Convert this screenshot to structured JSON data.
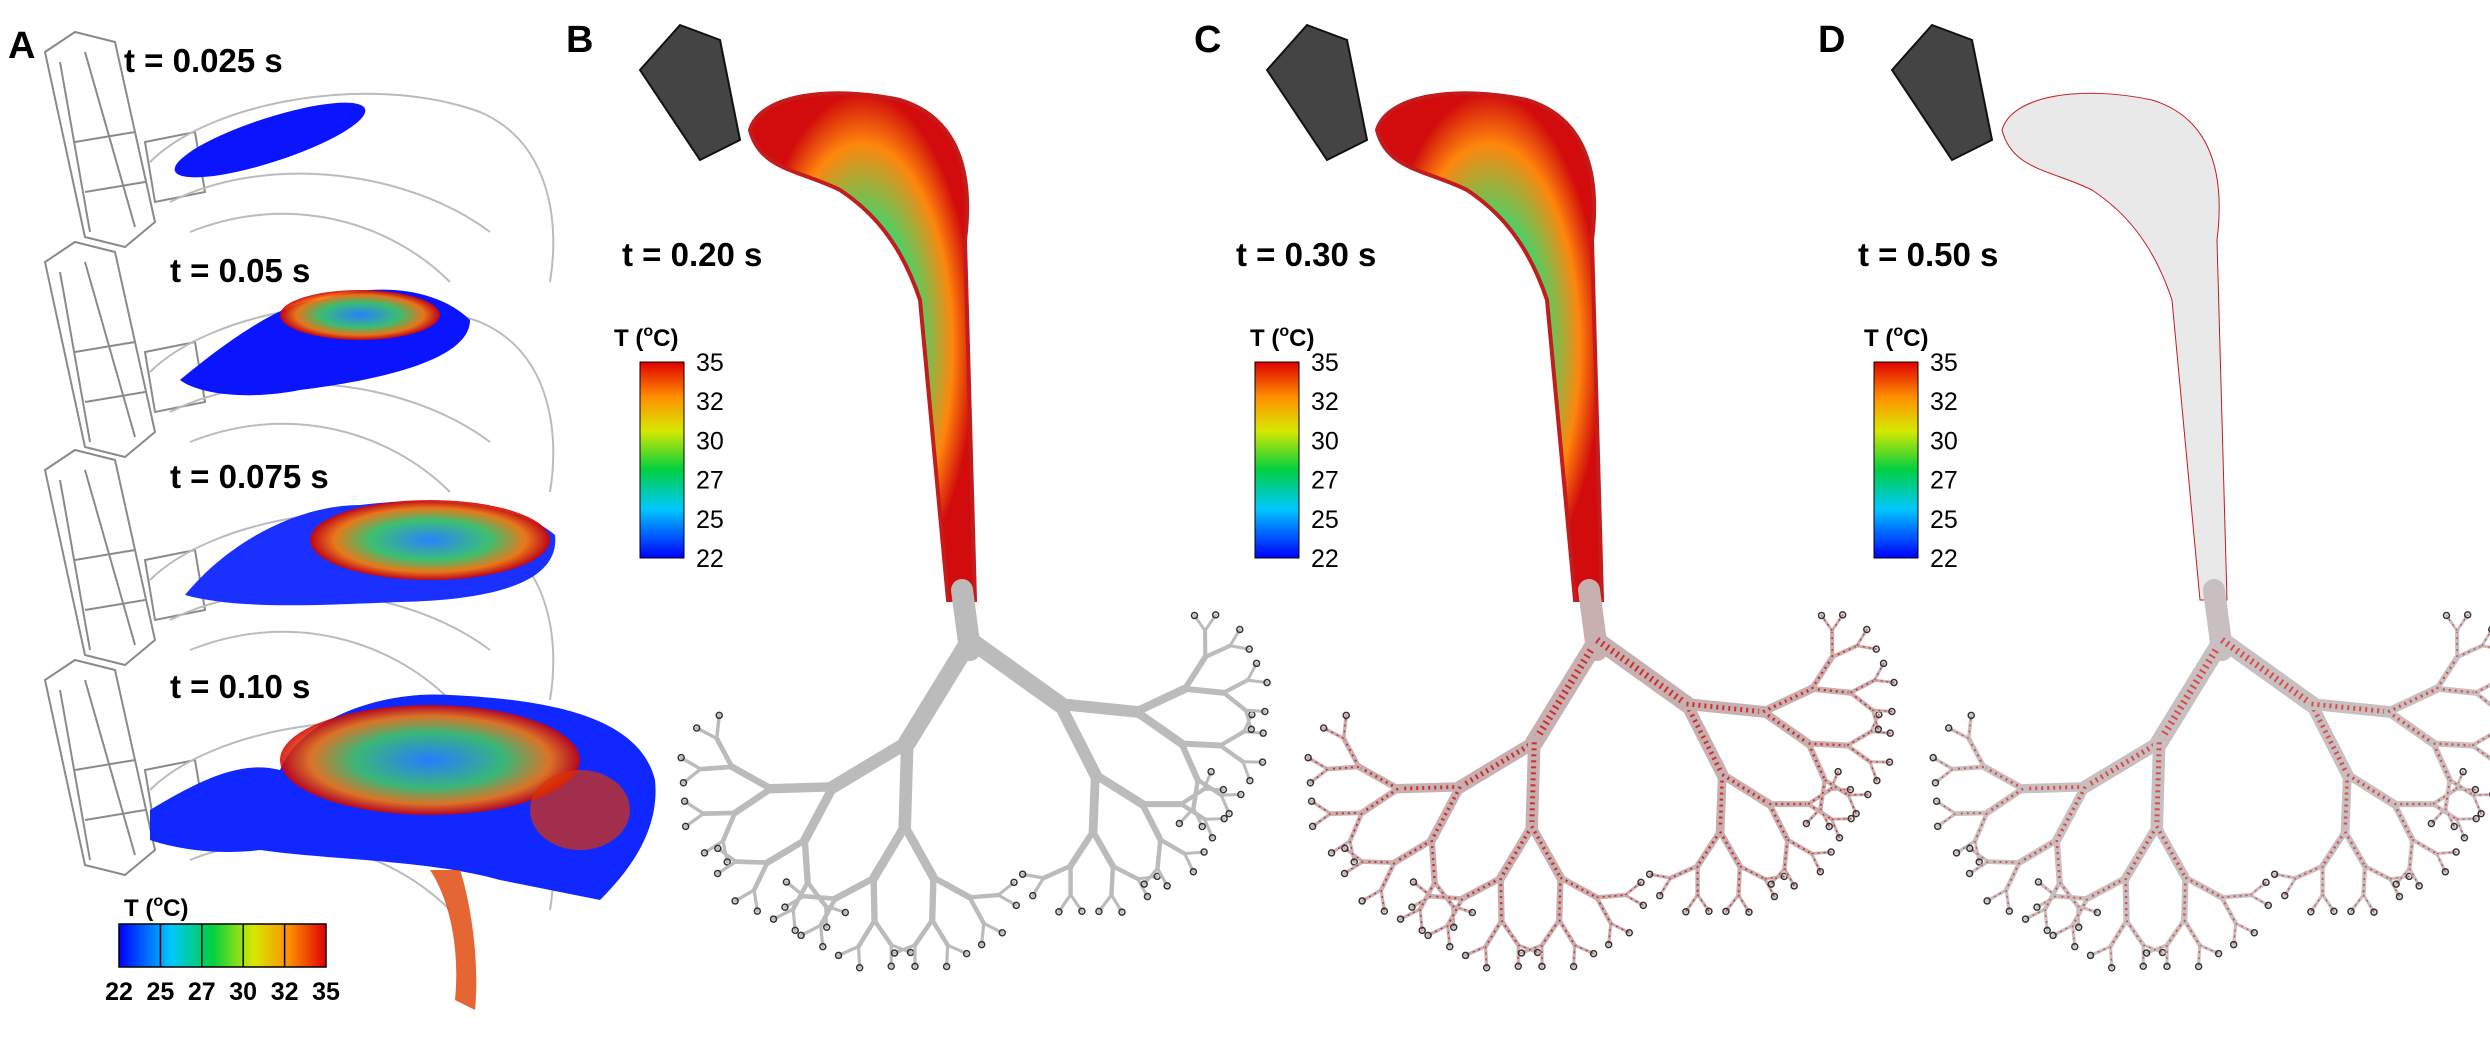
{
  "panels": [
    {
      "label": "A",
      "snapshots": [
        "t = 0.025 s",
        "t = 0.05 s",
        "t = 0.075 s",
        "t = 0.10 s"
      ],
      "colorbar": {
        "title": {
          "prefix": "T (",
          "sup": "o",
          "suffix": "C)"
        },
        "ticks": [
          22,
          25,
          27,
          30,
          32,
          35
        ]
      }
    },
    {
      "label": "B",
      "time": "t = 0.20 s",
      "colorbar": {
        "title": {
          "prefix": "T (",
          "sup": "o",
          "suffix": "C)"
        },
        "ticks": [
          22,
          25,
          27,
          30,
          32,
          35
        ]
      }
    },
    {
      "label": "C",
      "time": "t = 0.30 s",
      "colorbar": {
        "title": {
          "prefix": "T (",
          "sup": "o",
          "suffix": "C)"
        },
        "ticks": [
          22,
          25,
          27,
          30,
          32,
          35
        ]
      }
    },
    {
      "label": "D",
      "time": "t = 0.50 s",
      "colorbar": {
        "title": {
          "prefix": "T (",
          "sup": "o",
          "suffix": "C)"
        },
        "ticks": [
          22,
          25,
          27,
          30,
          32,
          35
        ]
      }
    }
  ]
}
